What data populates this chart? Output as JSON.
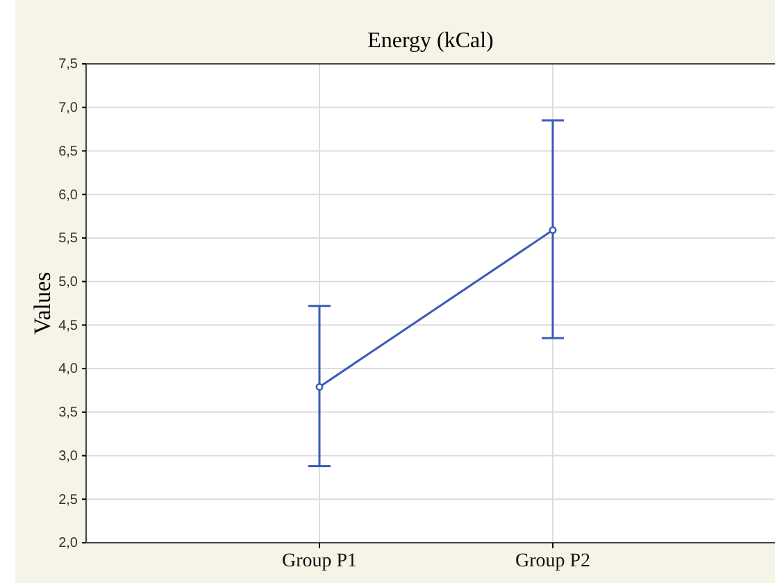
{
  "chart_data": {
    "type": "line",
    "title": "Energy (kCal)",
    "ylabel": "Values",
    "categories": [
      "Group P1",
      "Group P2"
    ],
    "series": [
      {
        "color": "#3a5bb8",
        "values": [
          3.79,
          5.59
        ],
        "errors": [
          [
            2.88,
            4.72
          ],
          [
            4.35,
            6.85
          ]
        ]
      }
    ],
    "marker": "circle",
    "line_style": "solid",
    "grid": true,
    "ylim": [
      2,
      7.5
    ],
    "yticks": [
      {
        "value": 2,
        "label": "2,0"
      },
      {
        "value": 2.5,
        "label": "2,5"
      },
      {
        "value": 3,
        "label": "3,0"
      },
      {
        "value": 3.5,
        "label": "3,5"
      },
      {
        "value": 4,
        "label": "4,0"
      },
      {
        "value": 4.5,
        "label": "4,5"
      },
      {
        "value": 5,
        "label": "5,0"
      },
      {
        "value": 5.5,
        "label": "5,5"
      },
      {
        "value": 6,
        "label": "6,0"
      },
      {
        "value": 6.5,
        "label": "6,5"
      },
      {
        "value": 7,
        "label": "7,0"
      },
      {
        "value": 7.5,
        "label": "7,5"
      }
    ]
  }
}
